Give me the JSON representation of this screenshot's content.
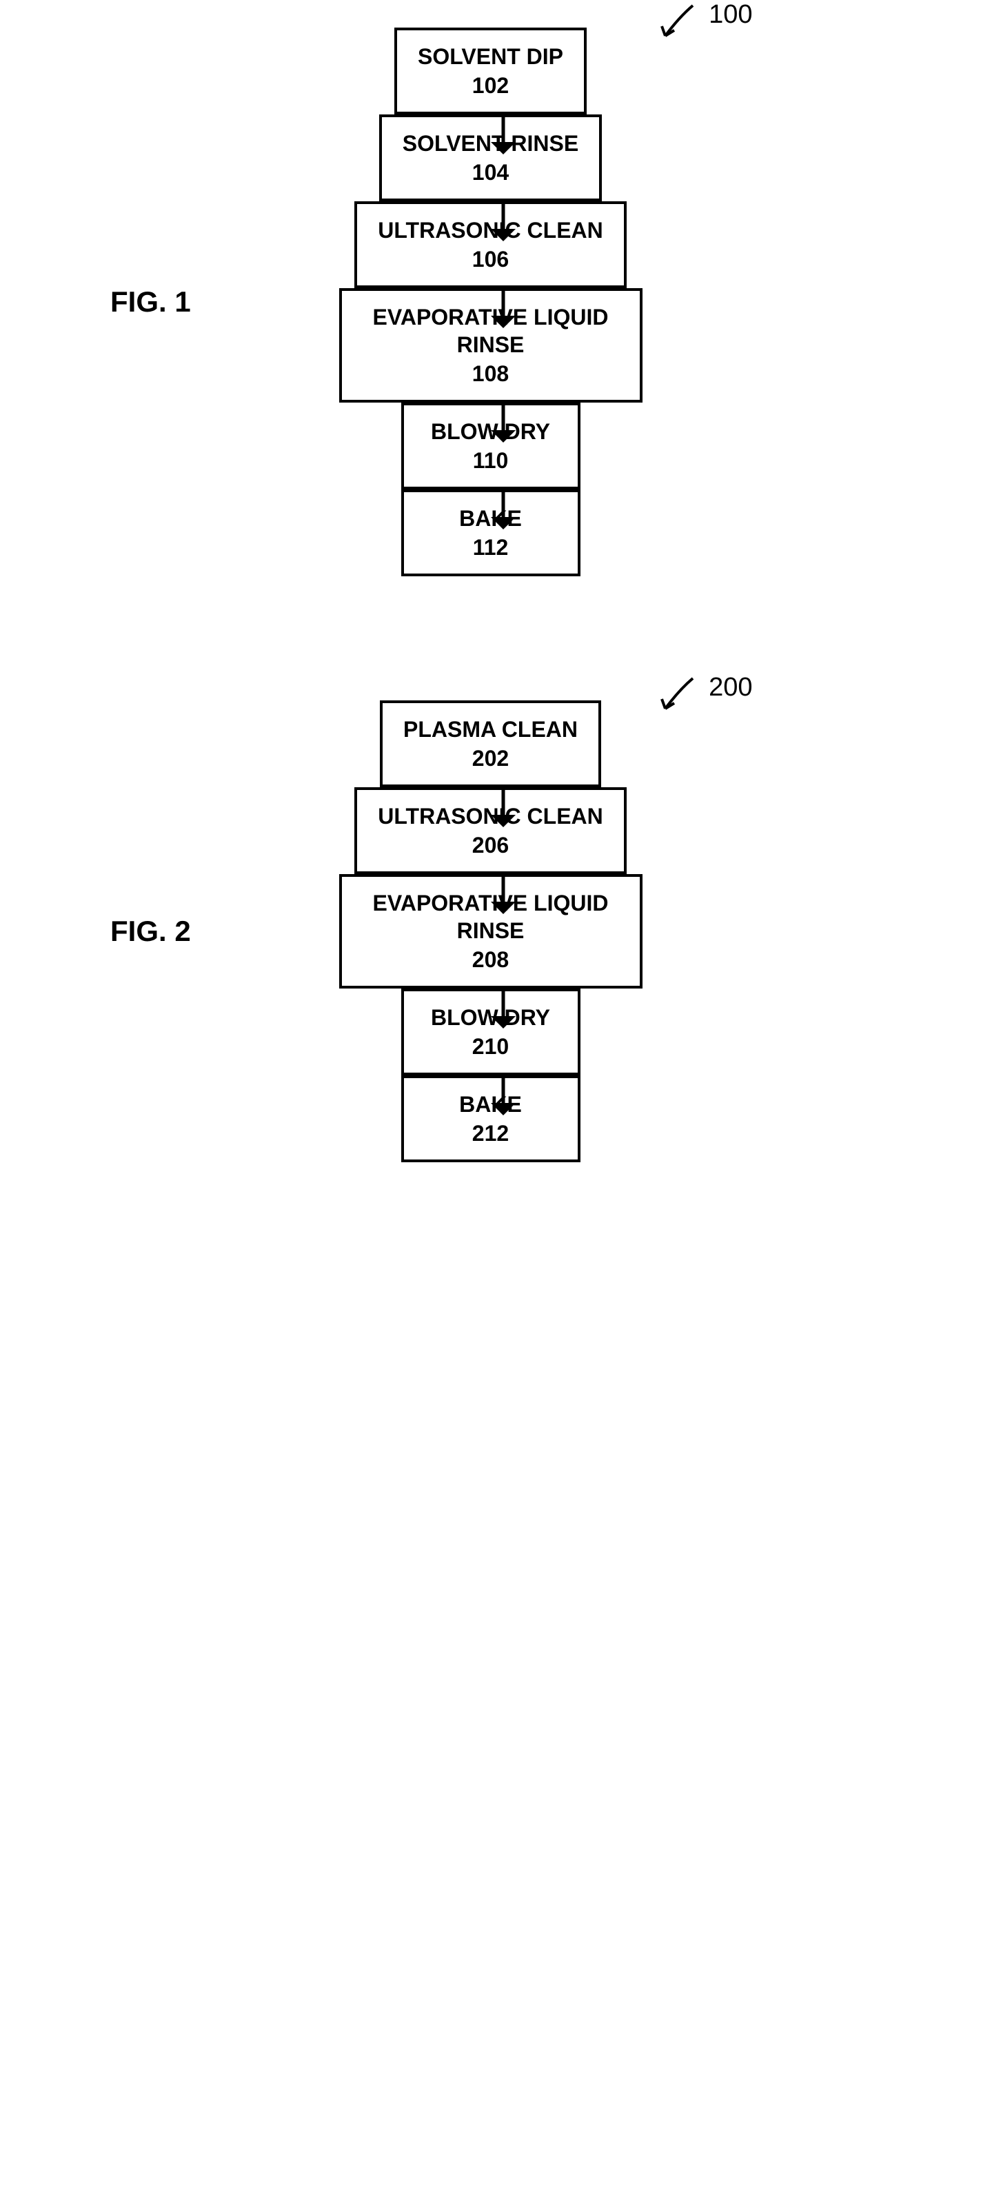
{
  "figure1": {
    "label": "FIG. 1",
    "reference": "100",
    "box_border_color": "#000000",
    "background_color": "#ffffff",
    "arrow_color": "#000000",
    "nodes": [
      {
        "title": "SOLVENT DIP",
        "num": "102",
        "width_class": ""
      },
      {
        "title": "SOLVENT RINSE",
        "num": "104",
        "width_class": ""
      },
      {
        "title": "ULTRASONIC CLEAN",
        "num": "106",
        "width_class": "wider"
      },
      {
        "title": "EVAPORATIVE LIQUID\nRINSE",
        "num": "108",
        "width_class": "widest"
      },
      {
        "title": "BLOW DRY",
        "num": "110",
        "width_class": ""
      },
      {
        "title": "BAKE",
        "num": "112",
        "width_class": ""
      }
    ]
  },
  "figure2": {
    "label": "FIG. 2",
    "reference": "200",
    "box_border_color": "#000000",
    "background_color": "#ffffff",
    "arrow_color": "#000000",
    "nodes": [
      {
        "title": "PLASMA CLEAN",
        "num": "202",
        "width_class": ""
      },
      {
        "title": "ULTRASONIC CLEAN",
        "num": "206",
        "width_class": "wider"
      },
      {
        "title": "EVAPORATIVE LIQUID\nRINSE",
        "num": "208",
        "width_class": "widest"
      },
      {
        "title": "BLOW DRY",
        "num": "210",
        "width_class": ""
      },
      {
        "title": "BAKE",
        "num": "212",
        "width_class": ""
      }
    ]
  },
  "arrow": {
    "shaft_length": 40,
    "head_size": 18,
    "stroke_width": 5
  },
  "ref_arrow": {
    "length": 60,
    "stroke_width": 4
  }
}
